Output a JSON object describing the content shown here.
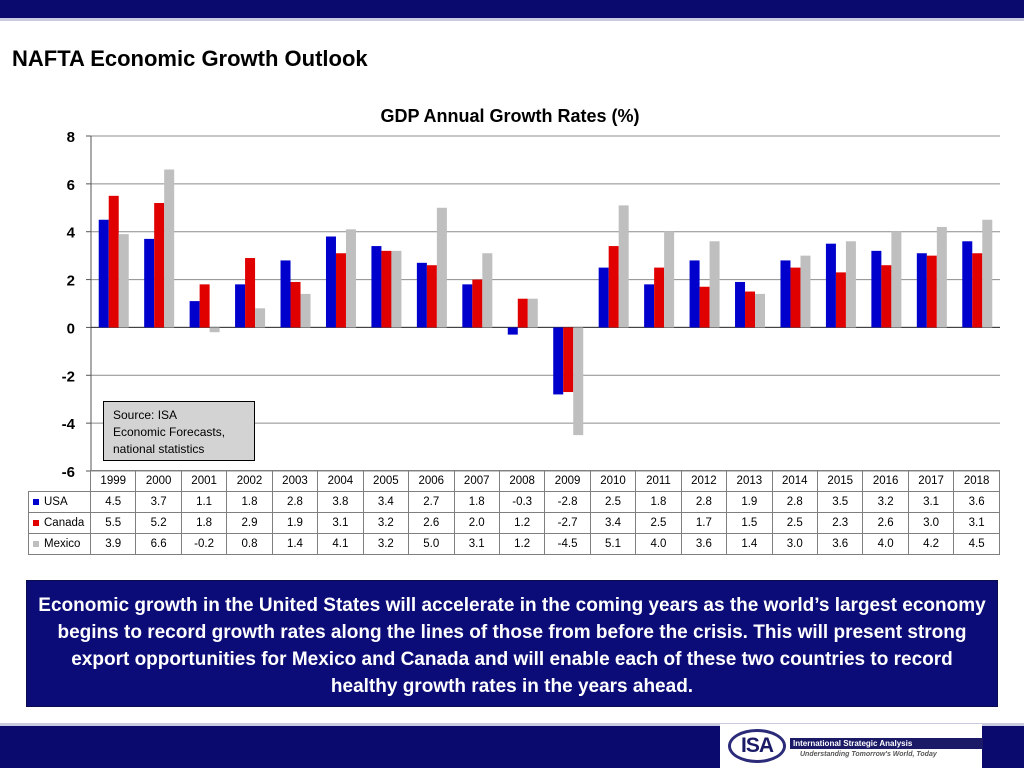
{
  "slide": {
    "title": "NAFTA Economic Growth Outlook",
    "summary": "Economic growth in the United States will accelerate in the coming years as the world’s largest economy begins to record growth rates along the lines of those from before the crisis.  This will present strong export opportunities for Mexico and Canada and will enable each of these two countries to record healthy growth rates in the years ahead.",
    "source_note": [
      "Source: ISA",
      "Economic Forecasts,",
      "national statistics"
    ]
  },
  "logo": {
    "mark": "ISA",
    "name": "International Strategic Analysis",
    "tagline": "Understanding Tomorrow's World, Today"
  },
  "chart_data": {
    "type": "bar",
    "title": "GDP Annual Growth Rates (%)",
    "categories": [
      "1999",
      "2000",
      "2001",
      "2002",
      "2003",
      "2004",
      "2005",
      "2006",
      "2007",
      "2008",
      "2009",
      "2010",
      "2011",
      "2012",
      "2013",
      "2014",
      "2015",
      "2016",
      "2017",
      "2018"
    ],
    "series": [
      {
        "name": "USA",
        "color": "#0000cc",
        "values": [
          4.5,
          3.7,
          1.1,
          1.8,
          2.8,
          3.8,
          3.4,
          2.7,
          1.8,
          -0.3,
          -2.8,
          2.5,
          1.8,
          2.8,
          1.9,
          2.8,
          3.5,
          3.2,
          3.1,
          3.6
        ]
      },
      {
        "name": "Canada",
        "color": "#e00000",
        "values": [
          5.5,
          5.2,
          1.8,
          2.9,
          1.9,
          3.1,
          3.2,
          2.6,
          2.0,
          1.2,
          -2.7,
          3.4,
          2.5,
          1.7,
          1.5,
          2.5,
          2.3,
          2.6,
          3.0,
          3.1
        ]
      },
      {
        "name": "Mexico",
        "color": "#bfbfbf",
        "values": [
          3.9,
          6.6,
          -0.2,
          0.8,
          1.4,
          4.1,
          3.2,
          5.0,
          3.1,
          1.2,
          -4.5,
          5.1,
          4.0,
          3.6,
          1.4,
          3.0,
          3.6,
          4.0,
          4.2,
          4.5
        ]
      }
    ],
    "ylim": [
      -6,
      8
    ],
    "yticks": [
      8,
      6,
      4,
      2,
      0,
      -2,
      -4,
      -6
    ],
    "grid": true,
    "legend": "data-table-below"
  }
}
